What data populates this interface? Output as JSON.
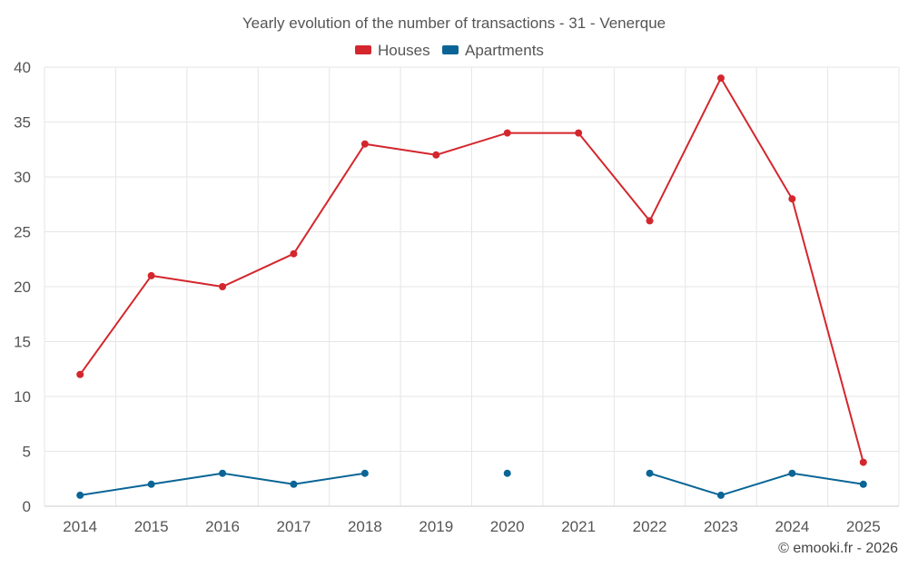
{
  "chart_data": {
    "type": "line",
    "title": "Yearly evolution of the number of transactions - 31 - Venerque",
    "categories": [
      "2014",
      "2015",
      "2016",
      "2017",
      "2018",
      "2019",
      "2020",
      "2021",
      "2022",
      "2023",
      "2024",
      "2025"
    ],
    "ylim": [
      0,
      40
    ],
    "yticks": [
      0,
      5,
      10,
      15,
      20,
      25,
      30,
      35,
      40
    ],
    "grid": true,
    "legend_position": "top-center",
    "series": [
      {
        "name": "Houses",
        "color": "#d3272d",
        "values": [
          12,
          21,
          20,
          23,
          33,
          32,
          34,
          34,
          26,
          39,
          28,
          4
        ]
      },
      {
        "name": "Apartments",
        "color": "#0a6596",
        "values": [
          1,
          2,
          3,
          2,
          3,
          null,
          3,
          null,
          3,
          1,
          3,
          2
        ]
      }
    ],
    "credit": "© emooki.fr - 2026"
  }
}
